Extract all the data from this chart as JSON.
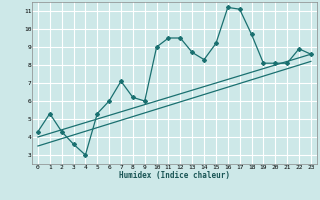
{
  "xlabel": "Humidex (Indice chaleur)",
  "ylabel": "",
  "bg_color": "#cde8e8",
  "grid_color": "#ffffff",
  "line_color": "#1a7070",
  "xlim": [
    -0.5,
    23.5
  ],
  "ylim": [
    2.5,
    11.5
  ],
  "xticks": [
    0,
    1,
    2,
    3,
    4,
    5,
    6,
    7,
    8,
    9,
    10,
    11,
    12,
    13,
    14,
    15,
    16,
    17,
    18,
    19,
    20,
    21,
    22,
    23
  ],
  "yticks": [
    3,
    4,
    5,
    6,
    7,
    8,
    9,
    10,
    11
  ],
  "line1_x": [
    0,
    1,
    2,
    3,
    4,
    5,
    6,
    7,
    8,
    9,
    10,
    11,
    12,
    13,
    14,
    15,
    16,
    17,
    18,
    19,
    20,
    21,
    22,
    23
  ],
  "line1_y": [
    4.3,
    5.3,
    4.3,
    3.6,
    3.0,
    5.3,
    6.0,
    7.1,
    6.2,
    6.0,
    9.0,
    9.5,
    9.5,
    8.7,
    8.3,
    9.2,
    11.2,
    11.1,
    9.7,
    8.1,
    8.1,
    8.1,
    8.9,
    8.6
  ],
  "line2_x": [
    0,
    23
  ],
  "line2_y": [
    4.0,
    8.6
  ],
  "line3_x": [
    0,
    23
  ],
  "line3_y": [
    3.5,
    8.2
  ],
  "figsize": [
    3.2,
    2.0
  ],
  "dpi": 100
}
